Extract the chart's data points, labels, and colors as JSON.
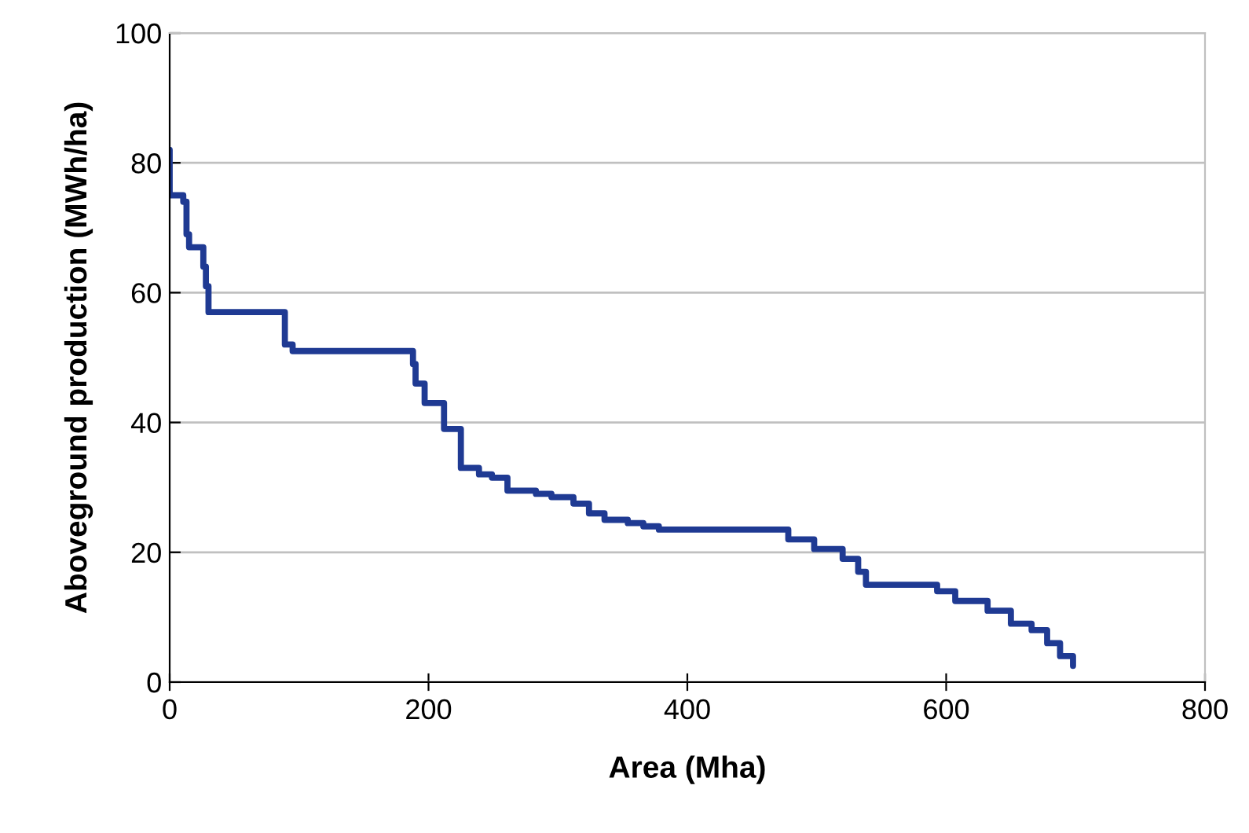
{
  "chart_data": {
    "type": "step",
    "xlabel": "Area (Mha)",
    "ylabel": "Aboveground production (MWh/ha)",
    "x": [
      0,
      0,
      10.5,
      13,
      15,
      26,
      28,
      30,
      89,
      95,
      188,
      190,
      197,
      212,
      225,
      239,
      249,
      261,
      283,
      295,
      312,
      324,
      336,
      354,
      366,
      378,
      478,
      498,
      520,
      532,
      538,
      593,
      607,
      632,
      650,
      666,
      678,
      688,
      698
    ],
    "series": [
      {
        "color": "#1f3a93",
        "values": [
          82,
          75,
          74,
          69,
          67,
          64,
          61,
          57,
          52,
          51,
          49,
          46,
          43,
          39,
          33,
          32,
          31.5,
          29.5,
          29,
          28.5,
          27.5,
          26,
          25,
          24.5,
          24,
          23.5,
          22,
          20.5,
          19,
          17,
          15,
          14,
          12.5,
          11,
          9,
          8,
          6,
          4,
          2.5
        ]
      }
    ],
    "xlim": [
      0,
      800
    ],
    "xticks": [
      0,
      200,
      400,
      600,
      800
    ],
    "ylim": [
      0,
      100
    ],
    "yticks": [
      0,
      20,
      40,
      60,
      80,
      100
    ],
    "grid": "y",
    "legend": false
  }
}
